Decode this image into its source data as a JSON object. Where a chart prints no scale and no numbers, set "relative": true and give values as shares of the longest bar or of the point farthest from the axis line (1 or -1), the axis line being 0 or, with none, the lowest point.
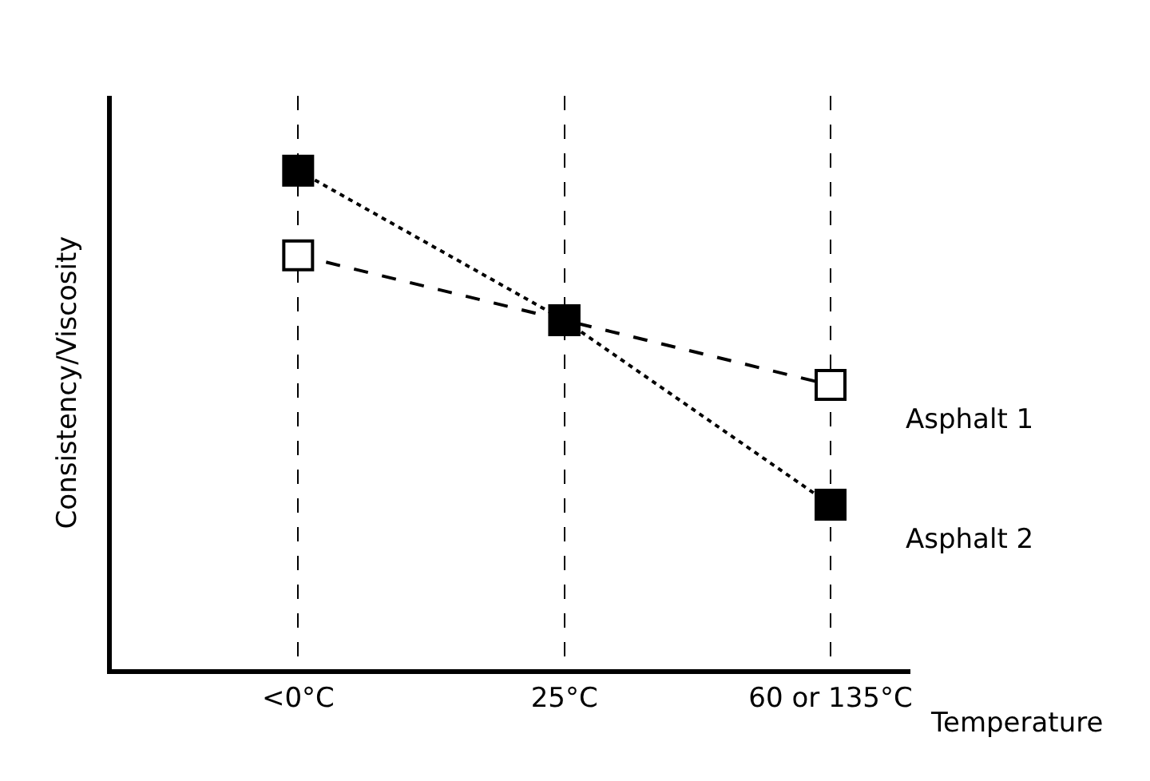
{
  "chart_data": {
    "type": "line",
    "relative": true,
    "xlabel": "Temperature",
    "ylabel": "Consistency/Viscosity",
    "categories": [
      "<0°C",
      "25°C",
      "60 or 135°C"
    ],
    "series": [
      {
        "name": "Asphalt 1",
        "color": "#000000",
        "line_style": "dashed",
        "values": [
          0.83,
          0.7,
          0.57
        ]
      },
      {
        "name": "Asphalt 2",
        "color": "#000000",
        "line_style": "dotted",
        "values": [
          1,
          0.7,
          0.33
        ]
      }
    ],
    "marker": "square",
    "legend": false,
    "grid": "x"
  }
}
